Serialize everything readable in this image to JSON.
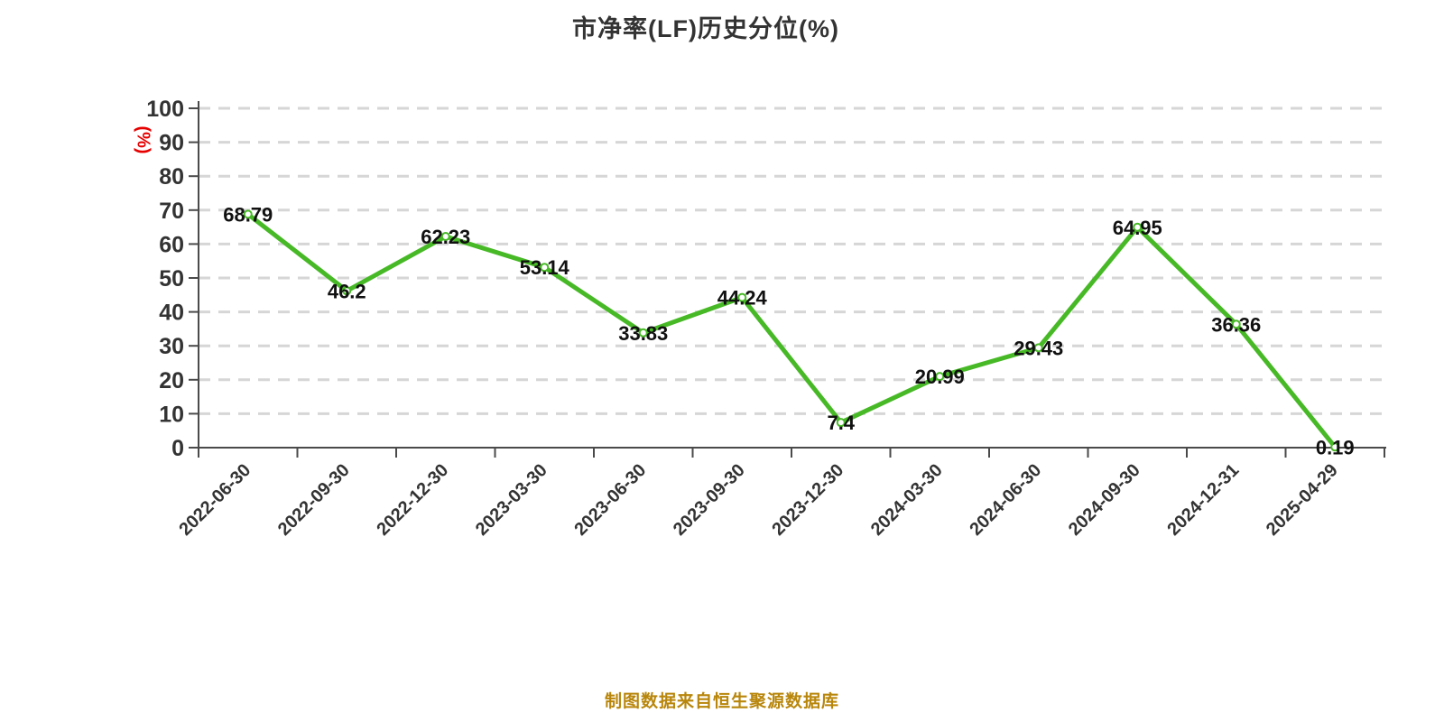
{
  "title": "市净率(LF)历史分位(%)",
  "y_axis_unit": "(%)",
  "footer": "制图数据来自恒生聚源数据库",
  "colors": {
    "line": "#47b926",
    "marker_fill": "#ffffff",
    "grid": "#d6d6d6",
    "axis": "#4a4a4a",
    "value_label": "#111111",
    "tick_label": "#333333",
    "title": "#333333",
    "unit_label": "#e60000",
    "footer": "#b8860b"
  },
  "chart_data": {
    "type": "line",
    "title": "市净率(LF)历史分位(%)",
    "categories": [
      "2022-06-30",
      "2022-09-30",
      "2022-12-30",
      "2023-03-30",
      "2023-06-30",
      "2023-09-30",
      "2023-12-30",
      "2024-03-30",
      "2024-06-30",
      "2024-09-30",
      "2024-12-31",
      "2025-04-29"
    ],
    "values": [
      68.79,
      46.2,
      62.23,
      53.14,
      33.83,
      44.24,
      7.4,
      20.99,
      29.43,
      64.95,
      36.36,
      0.19
    ],
    "value_labels": [
      "68.79",
      "46.2",
      "62.23",
      "53.14",
      "33.83",
      "44.24",
      "7.4",
      "20.99",
      "29.43",
      "64.95",
      "36.36",
      "0.19"
    ],
    "xlabel": "",
    "ylabel": "(%)",
    "ylim": [
      0,
      100
    ],
    "y_ticks": [
      0,
      10,
      20,
      30,
      40,
      50,
      60,
      70,
      80,
      90,
      100
    ],
    "grid": "horizontal-dashed",
    "legend": "none",
    "data_label_position": "centered-on-point",
    "x_label_rotation_deg": 45
  }
}
